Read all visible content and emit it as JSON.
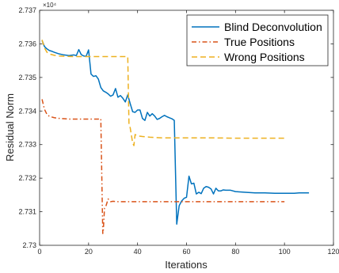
{
  "chart_data": {
    "type": "line",
    "title": "",
    "xlabel": "Iterations",
    "ylabel": "Residual Norm",
    "y_exponent_label": "×10⁴",
    "xlim": [
      0,
      120
    ],
    "ylim": [
      27300,
      27370
    ],
    "x_ticks": [
      0,
      20,
      40,
      60,
      80,
      100,
      120
    ],
    "x_tick_labels": [
      "0",
      "20",
      "40",
      "60",
      "80",
      "100",
      "120"
    ],
    "y_ticks": [
      27300,
      27310,
      27320,
      27330,
      27340,
      27350,
      27360,
      27370
    ],
    "y_tick_labels": [
      "2.73",
      "2.731",
      "2.732",
      "2.733",
      "2.734",
      "2.735",
      "2.736",
      "2.737"
    ],
    "grid": false,
    "legend_position": "top-right",
    "series": [
      {
        "name": "Blind Deconvolution",
        "color": "#0072BD",
        "style": "solid",
        "x": [
          1,
          2,
          3,
          4,
          5,
          6,
          8,
          10,
          12,
          14,
          15,
          16,
          17,
          18,
          19,
          20,
          21,
          22,
          23,
          24,
          25,
          26,
          27,
          28,
          29,
          30,
          31,
          32,
          33,
          34,
          35,
          36,
          37,
          38,
          39,
          40,
          41,
          42,
          43,
          44,
          45,
          46,
          47,
          48,
          49,
          50,
          51,
          52,
          53,
          54,
          55,
          56,
          57,
          58,
          59,
          60,
          61,
          62,
          63,
          64,
          65,
          66,
          67,
          68,
          69,
          70,
          71,
          72,
          73,
          74,
          75,
          76,
          78,
          80,
          84,
          88,
          92,
          96,
          100,
          104,
          106,
          108,
          110
        ],
        "values": [
          27361.0,
          27359.2,
          27358.5,
          27358.0,
          27357.8,
          27357.5,
          27357.0,
          27356.7,
          27356.5,
          27356.7,
          27356.5,
          27358.3,
          27356.8,
          27356.4,
          27356.3,
          27358.2,
          27351.0,
          27350.3,
          27350.5,
          27349.5,
          27347.0,
          27346.0,
          27345.6,
          27345.1,
          27344.4,
          27344.8,
          27346.7,
          27344.1,
          27344.6,
          27343.8,
          27342.7,
          27344.8,
          27342.2,
          27339.8,
          27339.6,
          27340.3,
          27340.3,
          27337.8,
          27337.2,
          27339.6,
          27338.5,
          27339.2,
          27338.5,
          27337.5,
          27337.8,
          27338.3,
          27338.7,
          27338.3,
          27338.0,
          27337.7,
          27337.2,
          27306.3,
          27311.8,
          27313.2,
          27314.0,
          27314.3,
          27320.6,
          27318.3,
          27318.5,
          27315.3,
          27315.8,
          27315.4,
          27317.0,
          27317.5,
          27317.3,
          27316.8,
          27315.3,
          27317.0,
          27316.2,
          27316.2,
          27316.5,
          27316.4,
          27316.4,
          27316.0,
          27315.8,
          27315.6,
          27315.6,
          27315.5,
          27315.5,
          27315.5,
          27315.6,
          27315.6,
          27315.6
        ]
      },
      {
        "name": "True Positions",
        "color": "#D95319",
        "style": "dashdot",
        "x": [
          1,
          2,
          3,
          4,
          6,
          8,
          10,
          12,
          14,
          16,
          18,
          20,
          22,
          24,
          25,
          25.8,
          26,
          26.5,
          27,
          28,
          29,
          30,
          32,
          35,
          40,
          50,
          60,
          70,
          80,
          90,
          100
        ],
        "values": [
          27343.5,
          27340.5,
          27339.0,
          27338.4,
          27338.0,
          27337.8,
          27337.7,
          27337.6,
          27337.6,
          27337.6,
          27337.6,
          27337.6,
          27337.6,
          27337.6,
          27337.7,
          27303.5,
          27304.2,
          27311.0,
          27311.5,
          27313.8,
          27313.0,
          27313.1,
          27313.0,
          27313.0,
          27313.0,
          27313.0,
          27313.0,
          27313.0,
          27313.0,
          27313.0,
          27313.0
        ]
      },
      {
        "name": "Wrong Positions",
        "color": "#EDB120",
        "style": "dashed",
        "x": [
          1,
          2,
          3,
          4,
          6,
          8,
          10,
          14,
          18,
          22,
          26,
          30,
          34,
          36,
          36.5,
          37,
          38,
          38.5,
          39,
          40,
          42,
          45,
          50,
          60,
          70,
          80,
          90,
          100
        ],
        "values": [
          27361.2,
          27358.8,
          27357.5,
          27357.0,
          27356.6,
          27356.4,
          27356.3,
          27356.2,
          27356.2,
          27356.2,
          27356.2,
          27356.2,
          27356.2,
          27356.2,
          27336.0,
          27335.0,
          27330.5,
          27329.7,
          27333.0,
          27332.6,
          27332.4,
          27332.2,
          27332.0,
          27332.0,
          27332.0,
          27331.9,
          27331.9,
          27331.9
        ]
      }
    ]
  }
}
